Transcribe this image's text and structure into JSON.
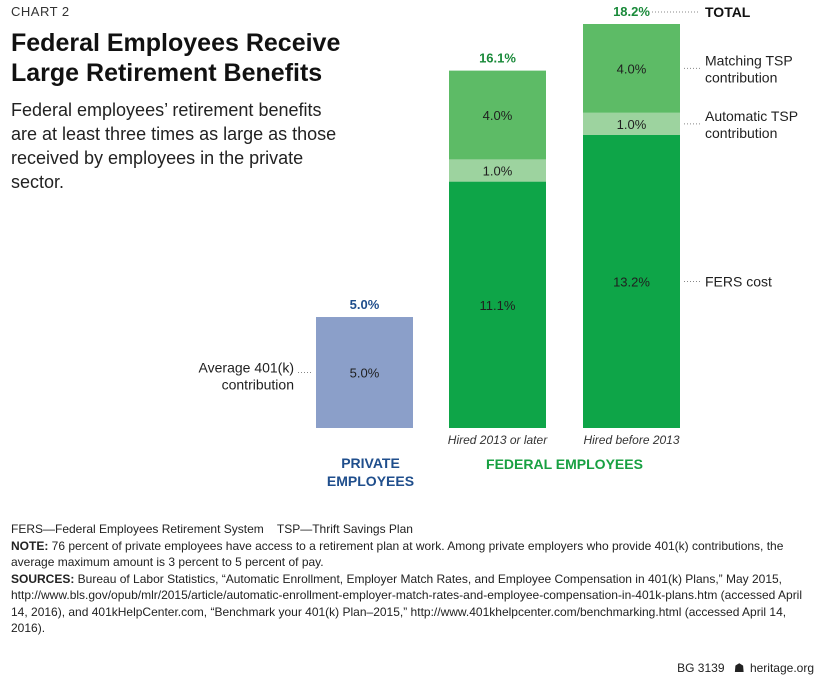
{
  "header": {
    "chart_label": "CHART 2",
    "title": "Federal Employees Receive Large Retirement Benefits",
    "subtitle": "Federal employees’ retirement benefits are at least three times as large as those received by employees in the private sector."
  },
  "colors": {
    "private": "#8b9fc9",
    "fers": "#0ea548",
    "automatic": "#9dd39f",
    "matching": "#5dbb66",
    "total_text": "#1a8a3a",
    "private_text": "#1f4e8c",
    "federal_text": "#17a041"
  },
  "chart_data": {
    "type": "bar",
    "stacked": true,
    "categories": [
      "",
      "Hired 2013 or later",
      "Hired before 2013"
    ],
    "groups": [
      "PRIVATE EMPLOYEES",
      "FEDERAL EMPLOYEES"
    ],
    "series": [
      {
        "name": "Average 401(k) contribution",
        "values": [
          5.0,
          null,
          null
        ],
        "labels": [
          "5.0%",
          "",
          ""
        ]
      },
      {
        "name": "FERS cost",
        "values": [
          null,
          11.1,
          13.2
        ],
        "labels": [
          "",
          "11.1%",
          "13.2%"
        ]
      },
      {
        "name": "Automatic TSP contribution",
        "values": [
          null,
          1.0,
          1.0
        ],
        "labels": [
          "",
          "1.0%",
          "1.0%"
        ]
      },
      {
        "name": "Matching TSP contribution",
        "values": [
          null,
          4.0,
          4.0
        ],
        "labels": [
          "",
          "4.0%",
          "4.0%"
        ]
      }
    ],
    "totals": [
      5.0,
      16.1,
      18.2
    ],
    "total_labels": [
      "5.0%",
      "16.1%",
      "18.2%"
    ],
    "total_legend": "TOTAL",
    "ylim": [
      0,
      18.2
    ]
  },
  "footer": {
    "abbreviations": "FERS—Federal Employees Retirement System    TSP—Thrift Savings Plan",
    "note_label": "NOTE:",
    "note": " 76 percent of private employees have access to a retirement plan at work. Among private employers who provide 401(k) contributions, the average maximum amount is 3 percent to 5 percent of pay.",
    "sources_label": "SOURCES:",
    "sources": " Bureau of Labor Statistics, “Automatic Enrollment, Employer Match Rates, and Employee Compensation in 401(k) Plans,” May 2015, http://www.bls.gov/opub/mlr/2015/article/automatic-enrollment-employer-match-rates-and-employee-compensation-in-401k-plans.htm (accessed April 14, 2016), and 401kHelpCenter.com, “Benchmark your 401(k) Plan–2015,” http://www.401khelpcenter.com/benchmarking.html (accessed April 14, 2016).",
    "credit_id": "BG 3139",
    "credit_site": "heritage.org"
  }
}
